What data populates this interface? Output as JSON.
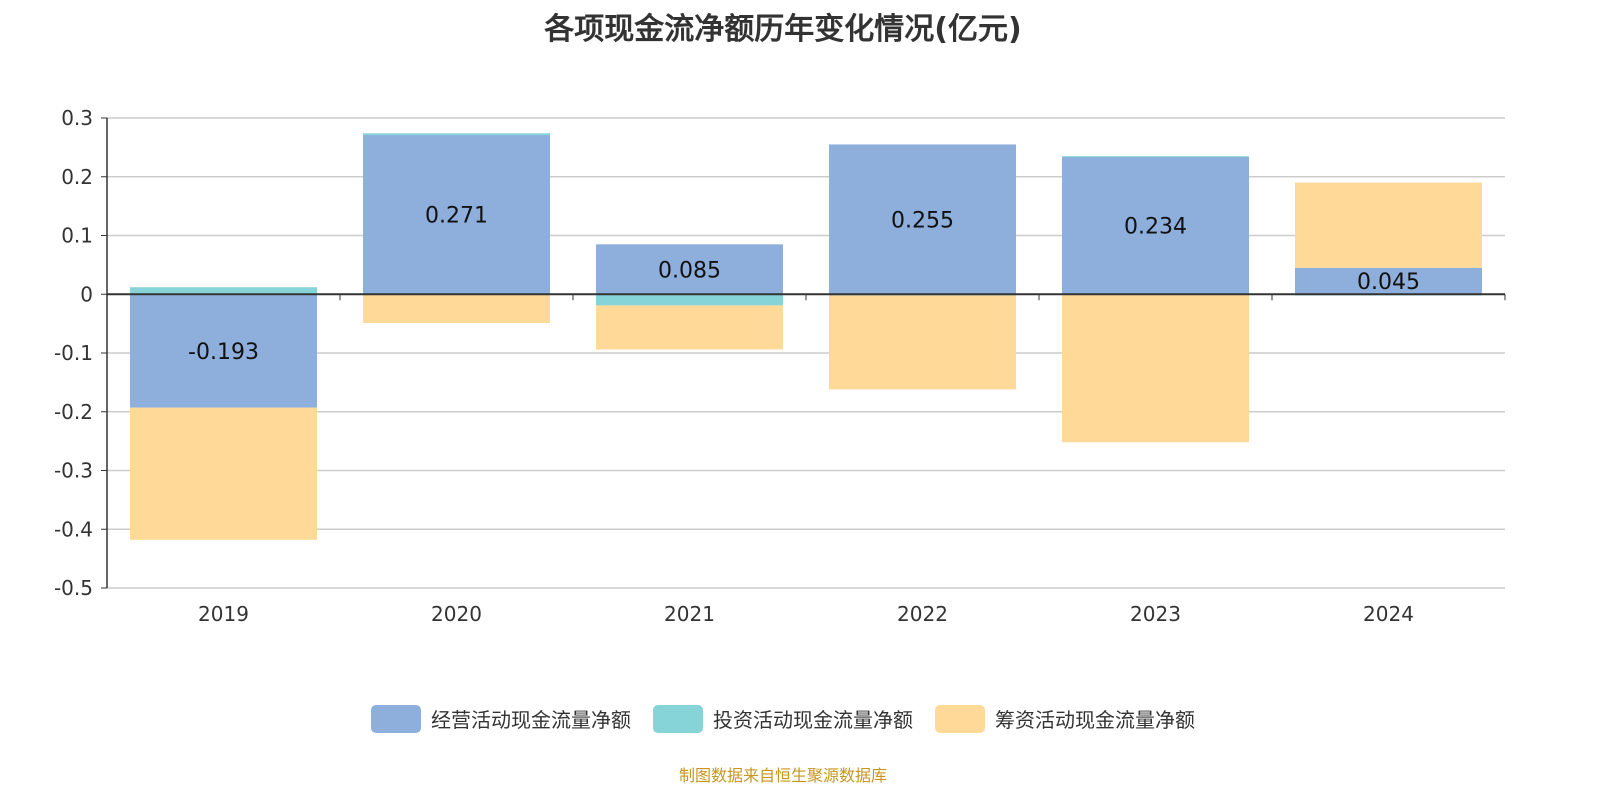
{
  "chart_data": {
    "type": "bar",
    "stacked": true,
    "title": "各项现金流净额历年变化情况(亿元)",
    "categories": [
      "2019",
      "2020",
      "2021",
      "2022",
      "2023",
      "2024"
    ],
    "series": [
      {
        "name": "经营活动现金流量净额",
        "color": "#8eaedb",
        "values": [
          -0.193,
          0.271,
          0.085,
          0.255,
          0.234,
          0.045
        ],
        "labels": [
          "-0.193",
          "0.271",
          "0.085",
          "0.255",
          "0.234",
          "0.045"
        ]
      },
      {
        "name": "投资活动现金流量净额",
        "color": "#86d4d8",
        "values": [
          0.012,
          0.003,
          -0.019,
          -0.002,
          0.001,
          -0.002
        ]
      },
      {
        "name": "筹资活动现金流量净额",
        "color": "#ffd998",
        "values": [
          -0.225,
          -0.049,
          -0.075,
          -0.16,
          -0.252,
          0.145
        ]
      }
    ],
    "ylim": [
      -0.5,
      0.3
    ],
    "yticks": [
      "0.3",
      "0.2",
      "0.1",
      "0",
      "-0.1",
      "-0.2",
      "-0.3",
      "-0.4",
      "-0.5"
    ],
    "grid": true,
    "legend": "bottom"
  },
  "source": "制图数据来自恒生聚源数据库"
}
